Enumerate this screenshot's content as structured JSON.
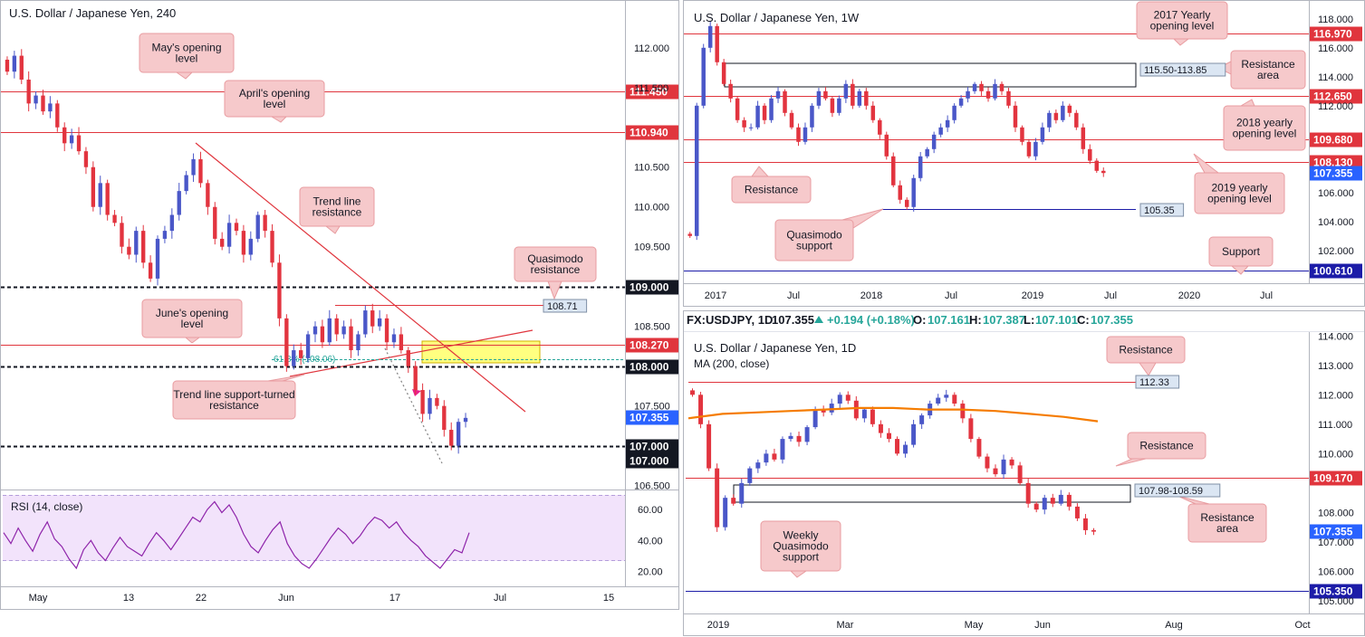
{
  "colors": {
    "up": "#4a57c8",
    "down": "#e2343f",
    "level": "#e0353d",
    "support_line": "#1c1ca8",
    "callout_fill": "#f6c9cb",
    "callout_stroke": "#e89ca0",
    "zone_fill": "#ffff80",
    "ma": "#f57c00",
    "rsi": "#8e24aa",
    "rsi_band": "#f2e3fb",
    "fib": "#26a69a",
    "tag_blue_fill": "#dbe6f3"
  },
  "panels": {
    "h4": {
      "header": "U.S. Dollar / Japanese Yen, 240",
      "rsi_label": "RSI (14, close)"
    },
    "weekly": {
      "header": "U.S. Dollar / Japanese Yen, 1W"
    },
    "daily": {
      "header": "U.S. Dollar / Japanese Yen, 1D",
      "ma_label": "MA (200, close)",
      "ticker": {
        "symbol": "FX:USDJPY, 1D",
        "last": "107.355",
        "change": "+0.194 (+0.18%)",
        "o_label": "O:",
        "o": "107.161",
        "h_label": "H:",
        "h": "107.387",
        "l_label": "L:",
        "l": "107.101",
        "c_label": "C:",
        "c": "107.355"
      }
    }
  },
  "chart_data": [
    {
      "id": "h4",
      "type": "candlestick",
      "title": "U.S. Dollar / Japanese Yen, 240",
      "ylim": [
        106.45,
        112.35
      ],
      "y_ticks": [
        "112.000",
        "111.500",
        "110.500",
        "110.000",
        "109.500",
        "108.500",
        "107.500",
        "106.500"
      ],
      "x_ticks": [
        "May",
        "13",
        "22",
        "Jun",
        "17",
        "Jul",
        "15"
      ],
      "levels": [
        {
          "value": 111.45,
          "label": "111.450",
          "style": "solid"
        },
        {
          "value": 110.94,
          "label": "110.940",
          "style": "solid"
        },
        {
          "value": 109.0,
          "label": "109.000",
          "style": "dashed"
        },
        {
          "value": 108.27,
          "label": "108.270",
          "style": "solid"
        },
        {
          "value": 108.0,
          "label": "108.000",
          "style": "dashed"
        },
        {
          "value": 107.0,
          "label": "107.000",
          "style": "dashed"
        },
        {
          "value": 107.0,
          "label": "107.000",
          "style": "price"
        },
        {
          "value": 107.355,
          "label": "107.355",
          "style": "current"
        }
      ],
      "close_path": [
        111.7,
        111.9,
        111.6,
        111.3,
        111.4,
        111.2,
        111.3,
        111.0,
        110.8,
        110.9,
        110.7,
        110.5,
        110.0,
        110.3,
        109.9,
        109.8,
        109.5,
        109.4,
        109.7,
        109.3,
        109.1,
        109.6,
        109.7,
        109.9,
        110.2,
        110.4,
        110.6,
        110.3,
        110.0,
        109.6,
        109.5,
        109.8,
        109.7,
        109.4,
        109.6,
        109.9,
        109.7,
        109.3,
        108.6,
        108.0,
        108.2,
        108.1,
        108.4,
        108.5,
        108.3,
        108.6,
        108.4,
        108.5,
        108.2,
        108.4,
        108.7,
        108.5,
        108.6,
        108.3,
        108.4,
        108.2,
        108.0,
        107.7,
        107.4,
        107.6,
        107.5,
        107.2,
        107.0,
        107.3,
        107.35
      ],
      "price_tags": [
        {
          "value": 108.71,
          "label": "108.71"
        }
      ],
      "fib_label": "61.8% (108.06)",
      "annotations": [
        "May's opening level",
        "April's opening level",
        "Trend line resistance",
        "Quasimodo resistance",
        "June's opening level",
        "Trend line support-turned resistance"
      ],
      "rsi": {
        "label": "RSI (14, close)",
        "ylim": [
          15,
          70
        ],
        "y_ticks": [
          "60.00",
          "40.00",
          "20.00"
        ],
        "values": [
          45,
          38,
          48,
          40,
          33,
          44,
          52,
          41,
          36,
          28,
          22,
          34,
          40,
          32,
          27,
          35,
          42,
          36,
          33,
          30,
          38,
          45,
          40,
          34,
          41,
          48,
          55,
          52,
          60,
          65,
          58,
          63,
          55,
          44,
          36,
          32,
          40,
          47,
          52,
          38,
          30,
          25,
          22,
          28,
          35,
          42,
          48,
          44,
          38,
          43,
          50,
          55,
          53,
          48,
          52,
          45,
          40,
          36,
          30,
          26,
          22,
          28,
          34,
          32,
          45
        ]
      }
    },
    {
      "id": "weekly",
      "type": "candlestick",
      "title": "U.S. Dollar / Japanese Yen, 1W",
      "ylim": [
        99.8,
        118.8
      ],
      "y_ticks": [
        "118.000",
        "116.000",
        "114.000",
        "112.000",
        "106.000",
        "104.000",
        "102.000"
      ],
      "x_ticks": [
        "2017",
        "Jul",
        "2018",
        "Jul",
        "2019",
        "Jul",
        "2020",
        "Jul"
      ],
      "levels": [
        {
          "value": 116.97,
          "label": "116.970",
          "style": "solid"
        },
        {
          "value": 112.65,
          "label": "112.650",
          "style": "solid"
        },
        {
          "value": 109.68,
          "label": "109.680",
          "style": "solid"
        },
        {
          "value": 108.13,
          "label": "108.130",
          "style": "solid"
        },
        {
          "value": 107.355,
          "label": "107.355",
          "style": "current"
        },
        {
          "value": 100.61,
          "label": "100.610",
          "style": "support"
        }
      ],
      "close_path": [
        103.0,
        112.0,
        116.0,
        117.5,
        115.0,
        113.5,
        112.5,
        111.0,
        110.5,
        110.5,
        112.0,
        111.0,
        112.5,
        113.0,
        111.5,
        110.5,
        109.5,
        110.5,
        112.0,
        113.0,
        112.5,
        111.5,
        112.5,
        113.5,
        112.0,
        113.0,
        112.0,
        111.0,
        110.0,
        108.5,
        106.5,
        105.5,
        105.0,
        107.0,
        108.5,
        109.0,
        110.0,
        110.5,
        111.0,
        112.0,
        112.5,
        113.0,
        113.5,
        113.0,
        112.5,
        113.5,
        113.0,
        112.0,
        110.5,
        109.5,
        108.5,
        109.5,
        110.5,
        111.5,
        111.0,
        112.0,
        111.5,
        110.5,
        109.0,
        108.2,
        107.5,
        107.35
      ],
      "price_tags": [
        {
          "value": 105.35,
          "label": "105.35"
        }
      ],
      "zones": [
        {
          "label": "115.50-113.85",
          "low": 113.85,
          "high": 115.5
        }
      ],
      "annotations": [
        "2017 Yearly opening level",
        "Resistance area",
        "2018 yearly opening level",
        "2019 yearly opening level",
        "Resistance",
        "Quasimodo support",
        "Support"
      ]
    },
    {
      "id": "daily",
      "type": "candlestick",
      "title": "U.S. Dollar / Japanese Yen, 1D",
      "ylim": [
        104.6,
        114.1
      ],
      "y_ticks": [
        "114.000",
        "113.000",
        "112.000",
        "111.000",
        "110.000",
        "108.000",
        "107.000",
        "106.000",
        "105.000"
      ],
      "x_ticks": [
        "2019",
        "Mar",
        "May",
        "Jun",
        "Aug",
        "Oct"
      ],
      "levels": [
        {
          "value": 112.33,
          "label": "112.33",
          "style": "tag"
        },
        {
          "value": 109.17,
          "label": "109.170",
          "style": "solid"
        },
        {
          "value": 107.355,
          "label": "107.355",
          "style": "current"
        },
        {
          "value": 105.35,
          "label": "105.350",
          "style": "support"
        }
      ],
      "close_path": [
        112.0,
        111.0,
        109.5,
        107.5,
        108.5,
        108.3,
        109.0,
        109.5,
        109.7,
        110.0,
        109.8,
        110.5,
        110.6,
        110.4,
        110.9,
        111.5,
        111.4,
        111.7,
        112.0,
        111.8,
        111.2,
        111.5,
        111.0,
        110.7,
        110.5,
        110.0,
        110.3,
        111.0,
        111.3,
        111.7,
        111.9,
        112.0,
        111.7,
        111.2,
        110.5,
        109.9,
        109.5,
        109.3,
        109.8,
        109.6,
        109.0,
        108.3,
        108.1,
        108.5,
        108.3,
        108.6,
        108.2,
        107.8,
        107.4,
        107.35
      ],
      "ma_200": [
        111.2,
        111.35,
        111.4,
        111.45,
        111.5,
        111.55,
        111.55,
        111.5,
        111.5,
        111.45,
        111.35,
        111.25,
        111.1
      ],
      "zones": [
        {
          "label": "107.98-108.59",
          "low": 107.98,
          "high": 108.59
        }
      ],
      "annotations": [
        "Resistance",
        "Resistance",
        "Resistance area",
        "Weekly Quasimodo support"
      ]
    }
  ]
}
